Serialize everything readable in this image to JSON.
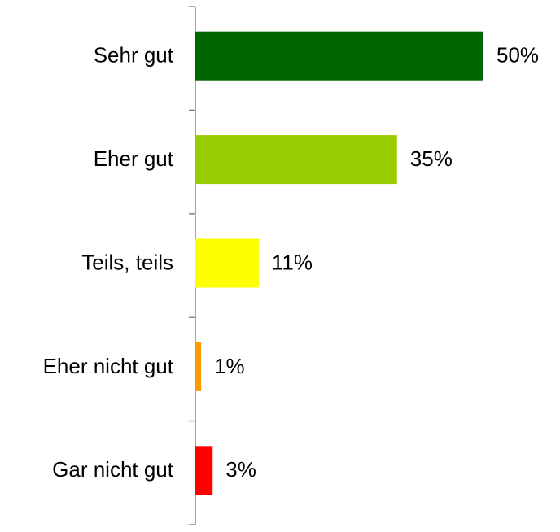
{
  "chart_data": {
    "type": "bar",
    "orientation": "horizontal",
    "categories": [
      "Sehr gut",
      "Eher gut",
      "Teils, teils",
      "Eher nicht gut",
      "Gar nicht gut"
    ],
    "values": [
      50,
      35,
      11,
      1,
      3
    ],
    "value_labels": [
      "50%",
      "35%",
      "11%",
      "1%",
      "3%"
    ],
    "colors": [
      "#006600",
      "#99cc00",
      "#ffff00",
      "#ff9900",
      "#ff0000"
    ]
  }
}
